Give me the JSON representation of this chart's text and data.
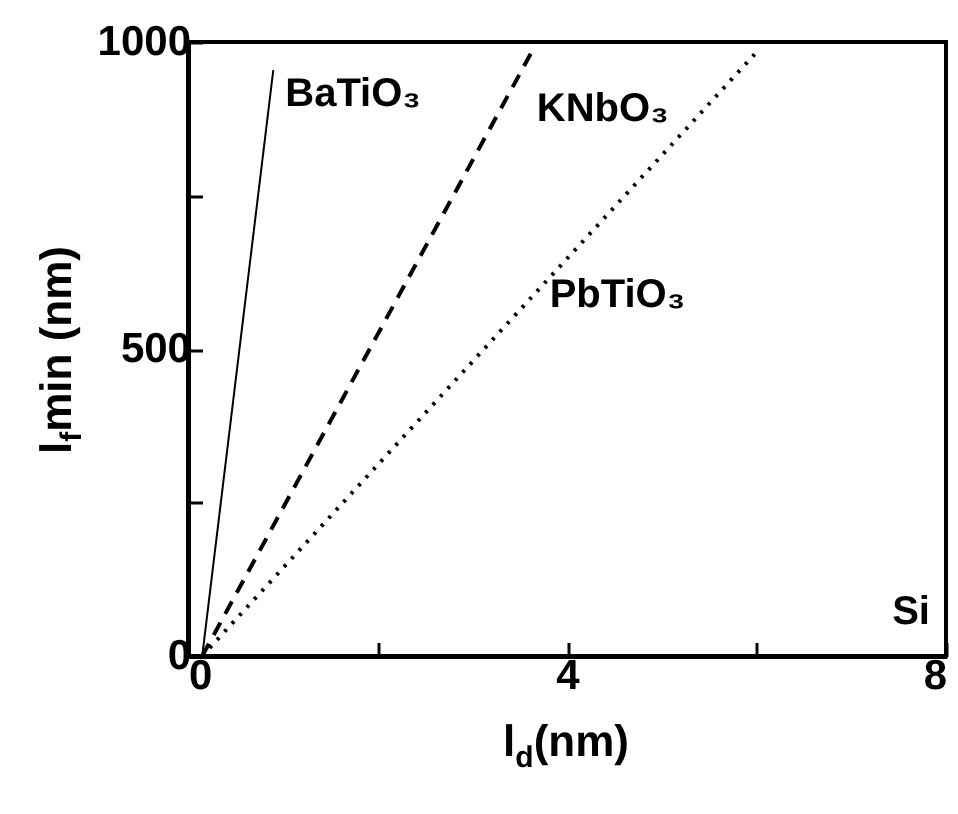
{
  "chart_data": {
    "type": "line",
    "xlabel": "l$_{d}$(nm)",
    "ylabel": "l$_{f}$min (nm)",
    "xlim": [
      0,
      8
    ],
    "xticks": [
      0,
      {
        "value": 2,
        "label": null
      },
      4,
      {
        "value": 6,
        "label": null
      },
      8
    ],
    "ylim": [
      0,
      1000
    ],
    "yticks": [
      0,
      {
        "value": 250,
        "label": null
      },
      500,
      {
        "value": 750,
        "label": null
      },
      1000
    ],
    "grid": false,
    "marker": "none",
    "series": [
      {
        "name": "BaTiO₃",
        "color": "#000000",
        "line_style": "solid",
        "x": [
          0.15,
          0.9
        ],
        "values": [
          0,
          954
        ]
      },
      {
        "name": "KNbO₃",
        "color": "#000000",
        "line_style": "dashed",
        "x": [
          0.15,
          3.66
        ],
        "values": [
          0,
          993
        ]
      },
      {
        "name": "PbTiO₃",
        "color": "#000000",
        "line_style": "dotted",
        "x": [
          0.15,
          5.98
        ],
        "values": [
          0,
          980
        ]
      }
    ],
    "annotations": [
      "Si"
    ]
  }
}
